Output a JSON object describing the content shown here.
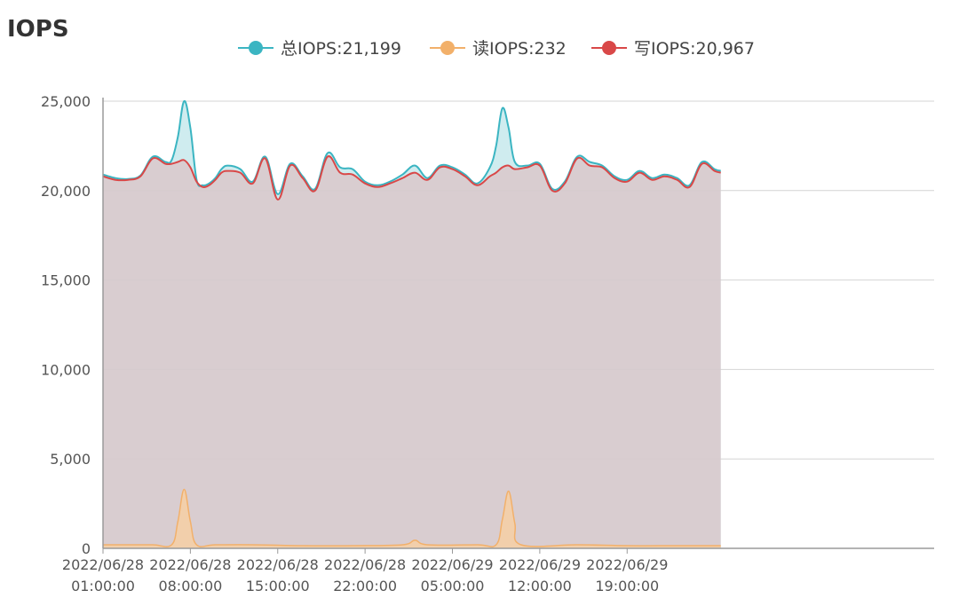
{
  "chart_data": {
    "type": "area",
    "title": "IOPS",
    "xlabel": "",
    "ylabel": "",
    "ylim": [
      0,
      25000
    ],
    "yticks": [
      0,
      5000,
      10000,
      15000,
      20000,
      25000
    ],
    "ytick_labels": [
      "0",
      "5,000",
      "10,000",
      "15,000",
      "20,000",
      "25,000"
    ],
    "x_range": [
      0,
      66.6
    ],
    "xticks": [
      0,
      7,
      14,
      21,
      28,
      35,
      42
    ],
    "xtick_labels": [
      [
        "2022/06/28",
        "01:00:00"
      ],
      [
        "2022/06/28",
        "08:00:00"
      ],
      [
        "2022/06/28",
        "15:00:00"
      ],
      [
        "2022/06/28",
        "22:00:00"
      ],
      [
        "2022/06/29",
        "05:00:00"
      ],
      [
        "2022/06/29",
        "12:00:00"
      ],
      [
        "2022/06/29",
        "19:00:00"
      ]
    ],
    "grid": true,
    "legend_position": "top-center",
    "series": [
      {
        "name": "总IOPS",
        "legend_label": "总IOPS:21,199",
        "color": "#3bb5c2",
        "fill": "#bfe6ea",
        "points": [
          [
            0,
            20900
          ],
          [
            1,
            20700
          ],
          [
            2,
            20650
          ],
          [
            3,
            20850
          ],
          [
            4,
            21900
          ],
          [
            5,
            21600
          ],
          [
            5.5,
            21700
          ],
          [
            6,
            23000
          ],
          [
            6.5,
            25000
          ],
          [
            7,
            23500
          ],
          [
            7.5,
            20600
          ],
          [
            8,
            20300
          ],
          [
            8.5,
            20400
          ],
          [
            9,
            20700
          ],
          [
            9.5,
            21200
          ],
          [
            10,
            21400
          ],
          [
            11,
            21200
          ],
          [
            12,
            20500
          ],
          [
            13,
            21900
          ],
          [
            14,
            19800
          ],
          [
            15,
            21500
          ],
          [
            16,
            20800
          ],
          [
            17,
            20100
          ],
          [
            18,
            22100
          ],
          [
            19,
            21300
          ],
          [
            20,
            21200
          ],
          [
            21,
            20500
          ],
          [
            22,
            20300
          ],
          [
            23,
            20500
          ],
          [
            24,
            20900
          ],
          [
            25,
            21400
          ],
          [
            26,
            20700
          ],
          [
            27,
            21400
          ],
          [
            28,
            21300
          ],
          [
            29,
            20900
          ],
          [
            30,
            20400
          ],
          [
            31,
            21300
          ],
          [
            31.5,
            22500
          ],
          [
            32,
            24600
          ],
          [
            32.5,
            23500
          ],
          [
            33,
            21600
          ],
          [
            34,
            21400
          ],
          [
            35,
            21500
          ],
          [
            36,
            20100
          ],
          [
            37,
            20500
          ],
          [
            38,
            21900
          ],
          [
            39,
            21600
          ],
          [
            40,
            21400
          ],
          [
            41,
            20800
          ],
          [
            42,
            20600
          ],
          [
            43,
            21100
          ],
          [
            44,
            20700
          ],
          [
            45,
            20900
          ],
          [
            46,
            20700
          ],
          [
            47,
            20300
          ],
          [
            48,
            21600
          ],
          [
            49,
            21200
          ],
          [
            49.5,
            21100
          ]
        ]
      },
      {
        "name": "读IOPS",
        "legend_label": "读IOPS:232",
        "color": "#f2b06a",
        "fill": "#f6cfa4",
        "points": [
          [
            0,
            200
          ],
          [
            2,
            200
          ],
          [
            4,
            200
          ],
          [
            5.5,
            200
          ],
          [
            6,
            1500
          ],
          [
            6.5,
            3300
          ],
          [
            7,
            1500
          ],
          [
            7.5,
            200
          ],
          [
            9,
            200
          ],
          [
            12,
            200
          ],
          [
            16,
            150
          ],
          [
            20,
            150
          ],
          [
            24,
            200
          ],
          [
            25,
            450
          ],
          [
            26,
            200
          ],
          [
            30,
            200
          ],
          [
            31.5,
            200
          ],
          [
            32,
            1600
          ],
          [
            32.5,
            3200
          ],
          [
            33,
            1400
          ],
          [
            33.5,
            200
          ],
          [
            38,
            200
          ],
          [
            42,
            150
          ],
          [
            46,
            150
          ],
          [
            49.5,
            150
          ]
        ]
      },
      {
        "name": "写IOPS",
        "legend_label": "写IOPS:20,967",
        "color": "#d94848",
        "fill": "#dcc3c6",
        "points": [
          [
            0,
            20800
          ],
          [
            1,
            20600
          ],
          [
            2,
            20600
          ],
          [
            3,
            20800
          ],
          [
            4,
            21800
          ],
          [
            5,
            21500
          ],
          [
            5.5,
            21500
          ],
          [
            6,
            21600
          ],
          [
            6.5,
            21700
          ],
          [
            7,
            21300
          ],
          [
            7.5,
            20500
          ],
          [
            8,
            20200
          ],
          [
            8.5,
            20300
          ],
          [
            9,
            20600
          ],
          [
            9.5,
            21000
          ],
          [
            10,
            21100
          ],
          [
            11,
            21000
          ],
          [
            12,
            20400
          ],
          [
            13,
            21800
          ],
          [
            14,
            19500
          ],
          [
            15,
            21400
          ],
          [
            16,
            20700
          ],
          [
            17,
            20000
          ],
          [
            18,
            21900
          ],
          [
            19,
            21000
          ],
          [
            20,
            20900
          ],
          [
            21,
            20400
          ],
          [
            22,
            20200
          ],
          [
            23,
            20400
          ],
          [
            24,
            20700
          ],
          [
            25,
            21000
          ],
          [
            26,
            20600
          ],
          [
            27,
            21300
          ],
          [
            28,
            21200
          ],
          [
            29,
            20800
          ],
          [
            30,
            20300
          ],
          [
            31,
            20800
          ],
          [
            31.5,
            21000
          ],
          [
            32,
            21300
          ],
          [
            32.5,
            21400
          ],
          [
            33,
            21200
          ],
          [
            34,
            21300
          ],
          [
            35,
            21400
          ],
          [
            36,
            20000
          ],
          [
            37,
            20400
          ],
          [
            38,
            21800
          ],
          [
            39,
            21400
          ],
          [
            40,
            21300
          ],
          [
            41,
            20700
          ],
          [
            42,
            20500
          ],
          [
            43,
            21000
          ],
          [
            44,
            20600
          ],
          [
            45,
            20800
          ],
          [
            46,
            20600
          ],
          [
            47,
            20200
          ],
          [
            48,
            21500
          ],
          [
            49,
            21100
          ],
          [
            49.5,
            21000
          ]
        ]
      }
    ]
  }
}
